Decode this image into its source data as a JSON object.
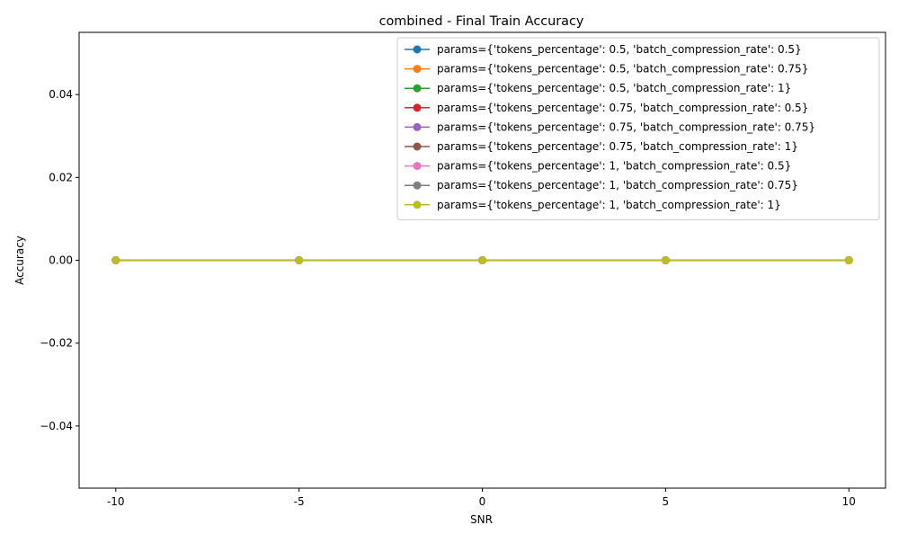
{
  "chart_data": {
    "type": "line",
    "title": "combined - Final Train Accuracy",
    "xlabel": "SNR",
    "ylabel": "Accuracy",
    "x": [
      "-10",
      "-5",
      "0",
      "5",
      "10"
    ],
    "ylim": [
      -0.055,
      0.055
    ],
    "y_ticks": [
      "−0.04",
      "−0.02",
      "0.00",
      "0.02",
      "0.04"
    ],
    "y_tick_values": [
      -0.04,
      -0.02,
      0.0,
      0.02,
      0.04
    ],
    "grid": false,
    "legend_position": "top-right",
    "series": [
      {
        "name": "params={'tokens_percentage': 0.5, 'batch_compression_rate': 0.5}",
        "color": "#1f77b4",
        "values": [
          0,
          0,
          0,
          0,
          0
        ]
      },
      {
        "name": "params={'tokens_percentage': 0.5, 'batch_compression_rate': 0.75}",
        "color": "#ff7f0e",
        "values": [
          0,
          0,
          0,
          0,
          0
        ]
      },
      {
        "name": "params={'tokens_percentage': 0.5, 'batch_compression_rate': 1}",
        "color": "#2ca02c",
        "values": [
          0,
          0,
          0,
          0,
          0
        ]
      },
      {
        "name": "params={'tokens_percentage': 0.75, 'batch_compression_rate': 0.5}",
        "color": "#d62728",
        "values": [
          0,
          0,
          0,
          0,
          0
        ]
      },
      {
        "name": "params={'tokens_percentage': 0.75, 'batch_compression_rate': 0.75}",
        "color": "#9467bd",
        "values": [
          0,
          0,
          0,
          0,
          0
        ]
      },
      {
        "name": "params={'tokens_percentage': 0.75, 'batch_compression_rate': 1}",
        "color": "#8c564b",
        "values": [
          0,
          0,
          0,
          0,
          0
        ]
      },
      {
        "name": "params={'tokens_percentage': 1, 'batch_compression_rate': 0.5}",
        "color": "#e377c2",
        "values": [
          0,
          0,
          0,
          0,
          0
        ]
      },
      {
        "name": "params={'tokens_percentage': 1, 'batch_compression_rate': 0.75}",
        "color": "#7f7f7f",
        "values": [
          0,
          0,
          0,
          0,
          0
        ]
      },
      {
        "name": "params={'tokens_percentage': 1, 'batch_compression_rate': 1}",
        "color": "#bcbd22",
        "values": [
          0,
          0,
          0,
          0,
          0
        ]
      }
    ]
  }
}
